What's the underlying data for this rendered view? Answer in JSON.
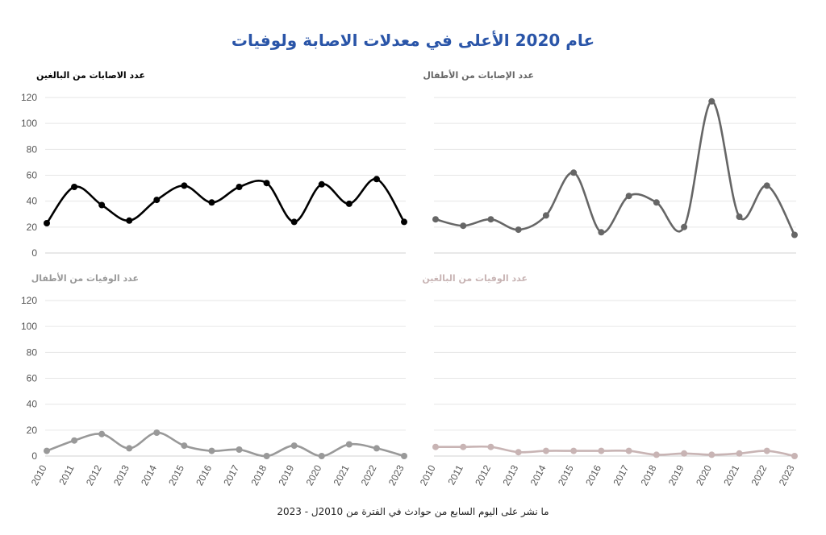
{
  "title": "عام 2020 الأعلى في معدلات الاصابة ولوفيات",
  "source": "ما نشر على اليوم السابع من حوادث في الفترة من 2010ل - 2023",
  "chart_data": {
    "type": "line",
    "categories": [
      "2010",
      "2011",
      "2012",
      "2013",
      "2014",
      "2015",
      "2016",
      "2017",
      "2018",
      "2019",
      "2020",
      "2021",
      "2022",
      "2023"
    ],
    "ylim": [
      0,
      120
    ],
    "yticks": [
      0,
      20,
      40,
      60,
      80,
      100,
      120
    ],
    "grid": true,
    "panels": [
      {
        "id": "adult-injuries",
        "name": "عدد الاصابات من البالغين",
        "color": "#000000",
        "values": [
          23,
          51,
          37,
          25,
          41,
          52,
          39,
          51,
          54,
          24,
          53,
          38,
          57,
          24
        ]
      },
      {
        "id": "child-injuries",
        "name": "عدد الإصابات من الأطفال",
        "color": "#666666",
        "values": [
          26,
          21,
          26,
          18,
          29,
          62,
          16,
          44,
          39,
          20,
          117,
          28,
          52,
          14
        ]
      },
      {
        "id": "child-deaths",
        "name": "عدد الوفيات من الأطفال",
        "color": "#999999",
        "values": [
          4,
          12,
          17,
          6,
          18,
          8,
          4,
          5,
          0,
          8,
          0,
          9,
          6,
          0
        ]
      },
      {
        "id": "adult-deaths",
        "name": "عدد الوفيات من البالغين",
        "color": "#c8b4b4",
        "values": [
          7,
          7,
          7,
          3,
          4,
          4,
          4,
          4,
          1,
          2,
          1,
          2,
          4,
          0
        ]
      }
    ]
  }
}
